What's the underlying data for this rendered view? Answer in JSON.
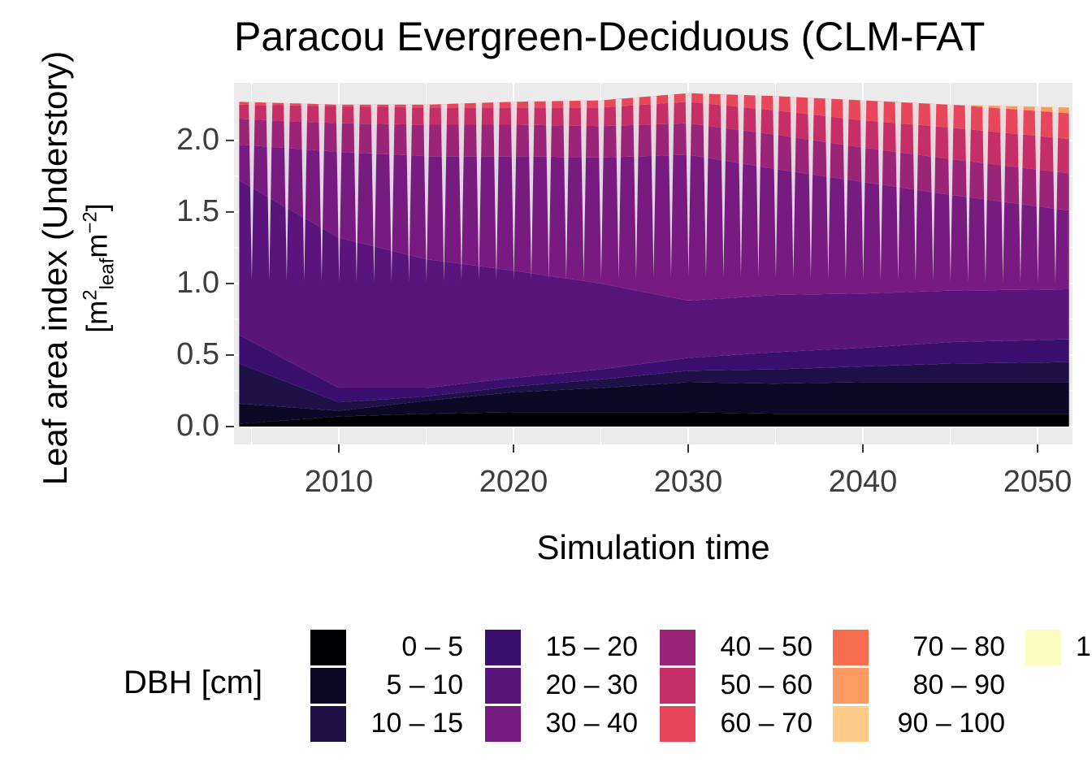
{
  "chart_data": {
    "type": "area",
    "title": "Paracou Evergreen-Deciduous (CLM-FAT",
    "xlabel": "Simulation time",
    "ylabel": "Leaf area index (Understory)",
    "ylabel_unit": {
      "open": "[",
      "base1": "m",
      "sup1": "2",
      "sub1": "leaf",
      "base2": "m",
      "sup2": "−2",
      "close": "]"
    },
    "xlim": [
      2004,
      2052
    ],
    "ylim": [
      0,
      2.3
    ],
    "x_ticks": [
      2010,
      2020,
      2030,
      2040,
      2050
    ],
    "x_tick_labels": [
      "2010",
      "2020",
      "2030",
      "2040",
      "2050"
    ],
    "y_ticks": [
      0,
      0.5,
      1,
      1.5,
      2
    ],
    "y_tick_labels": [
      "0.0",
      "0.5",
      "1.0",
      "1.5",
      "2.0"
    ],
    "grid": true,
    "stacked": true,
    "legend_position": "bottom",
    "legend_title": "DBH [cm]",
    "x": [
      2004.3,
      2010,
      2015,
      2020,
      2025,
      2030,
      2035,
      2040,
      2045,
      2051.8
    ],
    "seasonal_dip_fraction": 0.55,
    "series": [
      {
        "name": "0 – 5",
        "color": "#000004",
        "values": [
          0.02,
          0.07,
          0.09,
          0.1,
          0.1,
          0.1,
          0.09,
          0.09,
          0.09,
          0.09
        ]
      },
      {
        "name": "5 – 10",
        "color": "#0c0826",
        "values": [
          0.14,
          0.04,
          0.09,
          0.14,
          0.17,
          0.21,
          0.21,
          0.22,
          0.22,
          0.22
        ]
      },
      {
        "name": "10 – 15",
        "color": "#1d1147",
        "values": [
          0.28,
          0.06,
          0.03,
          0.04,
          0.06,
          0.08,
          0.1,
          0.11,
          0.13,
          0.14
        ]
      },
      {
        "name": "15 – 20",
        "color": "#3b0f70",
        "values": [
          0.2,
          0.1,
          0.06,
          0.06,
          0.07,
          0.09,
          0.12,
          0.13,
          0.15,
          0.16
        ]
      },
      {
        "name": "20 – 30",
        "color": "#5a157c",
        "values": [
          1.08,
          1.05,
          0.9,
          0.75,
          0.6,
          0.4,
          0.4,
          0.38,
          0.36,
          0.35
        ]
      },
      {
        "name": "30 – 40",
        "color": "#781b80",
        "values": [
          0.25,
          0.6,
          0.72,
          0.8,
          0.88,
          1.02,
          0.88,
          0.78,
          0.67,
          0.55
        ]
      },
      {
        "name": "40 – 50",
        "color": "#9a2578",
        "values": [
          0.18,
          0.2,
          0.22,
          0.22,
          0.22,
          0.22,
          0.24,
          0.24,
          0.25,
          0.26
        ]
      },
      {
        "name": "50 – 60",
        "color": "#c52e66",
        "values": [
          0.1,
          0.12,
          0.12,
          0.12,
          0.13,
          0.15,
          0.17,
          0.19,
          0.22,
          0.24
        ]
      },
      {
        "name": "60 – 70",
        "color": "#e8475b",
        "values": [
          0.02,
          0.01,
          0.02,
          0.04,
          0.05,
          0.06,
          0.1,
          0.14,
          0.16,
          0.18
        ]
      },
      {
        "name": "70 – 80",
        "color": "#f76e4f",
        "values": [
          0,
          0,
          0,
          0,
          0,
          0,
          0,
          0,
          0,
          0
        ]
      },
      {
        "name": "80 – 90",
        "color": "#fc9a62",
        "values": [
          0,
          0,
          0,
          0,
          0,
          0,
          0,
          0,
          0,
          0.04
        ]
      },
      {
        "name": "90 – 100",
        "color": "#fecc86",
        "values": [
          0,
          0,
          0,
          0,
          0,
          0,
          0,
          0,
          0,
          0
        ]
      },
      {
        "name": "1",
        "color": "#fbfcbf",
        "values": [
          0,
          0,
          0,
          0,
          0,
          0,
          0,
          0,
          0,
          0
        ]
      }
    ]
  }
}
